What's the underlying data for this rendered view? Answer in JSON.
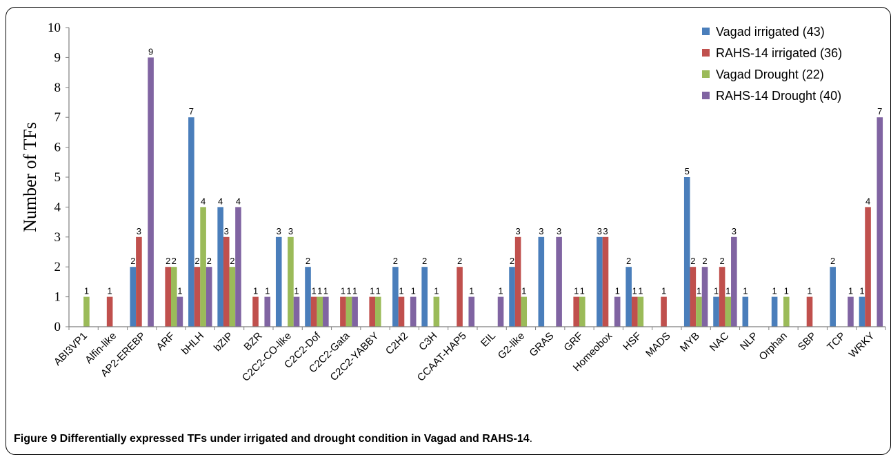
{
  "caption": {
    "text": "Figure 9 Differentially expressed TFs under irrigated and drought condition in Vagad and RAHS-14",
    "trailing": "."
  },
  "chart_data": {
    "type": "bar",
    "ylabel": "Number of  TFs",
    "xlabel": "",
    "ylim": [
      0,
      10
    ],
    "yticks": [
      0,
      1,
      2,
      3,
      4,
      5,
      6,
      7,
      8,
      9,
      10
    ],
    "grid": false,
    "legend_position": "top-right",
    "categories": [
      "ABI3VP1",
      "Alfin-like",
      "AP2-EREBP",
      "ARF",
      "bHLH",
      "bZIP",
      "BZR",
      "C2C2-CO-like",
      "C2C2-Dof",
      "C2C2-Gata",
      "C2C2-YABBY",
      "C2H2",
      "C3H",
      "CCAAT-HAP5",
      "EIL",
      "G2-like",
      "GRAS",
      "GRF",
      "Homeobox",
      "HSF",
      "MADS",
      "MYB",
      "NAC",
      "NLP",
      "Orphan",
      "SBP",
      "TCP",
      "WRKY"
    ],
    "series": [
      {
        "name": "Vagad irrigated (43)",
        "color": "#4a7ebb",
        "values": [
          0,
          0,
          2,
          0,
          7,
          4,
          0,
          3,
          2,
          0,
          0,
          2,
          2,
          0,
          0,
          2,
          3,
          0,
          3,
          2,
          0,
          5,
          1,
          1,
          1,
          0,
          2,
          1
        ]
      },
      {
        "name": "RAHS-14 irrigated (36)",
        "color": "#c0504d",
        "values": [
          0,
          1,
          3,
          2,
          2,
          3,
          1,
          0,
          1,
          1,
          1,
          1,
          0,
          2,
          0,
          3,
          0,
          1,
          3,
          1,
          1,
          2,
          2,
          0,
          0,
          1,
          0,
          4
        ]
      },
      {
        "name": "Vagad Drought (22)",
        "color": "#9bbb59",
        "values": [
          1,
          0,
          0,
          2,
          4,
          2,
          0,
          3,
          1,
          1,
          1,
          0,
          1,
          0,
          0,
          1,
          0,
          1,
          0,
          1,
          0,
          1,
          1,
          0,
          1,
          0,
          0,
          0
        ]
      },
      {
        "name": "RAHS-14  Drought (40)",
        "color": "#8064a2",
        "values": [
          0,
          0,
          9,
          1,
          2,
          4,
          1,
          1,
          1,
          1,
          0,
          1,
          0,
          1,
          1,
          0,
          3,
          0,
          1,
          0,
          0,
          2,
          3,
          0,
          0,
          0,
          1,
          7
        ]
      }
    ]
  }
}
